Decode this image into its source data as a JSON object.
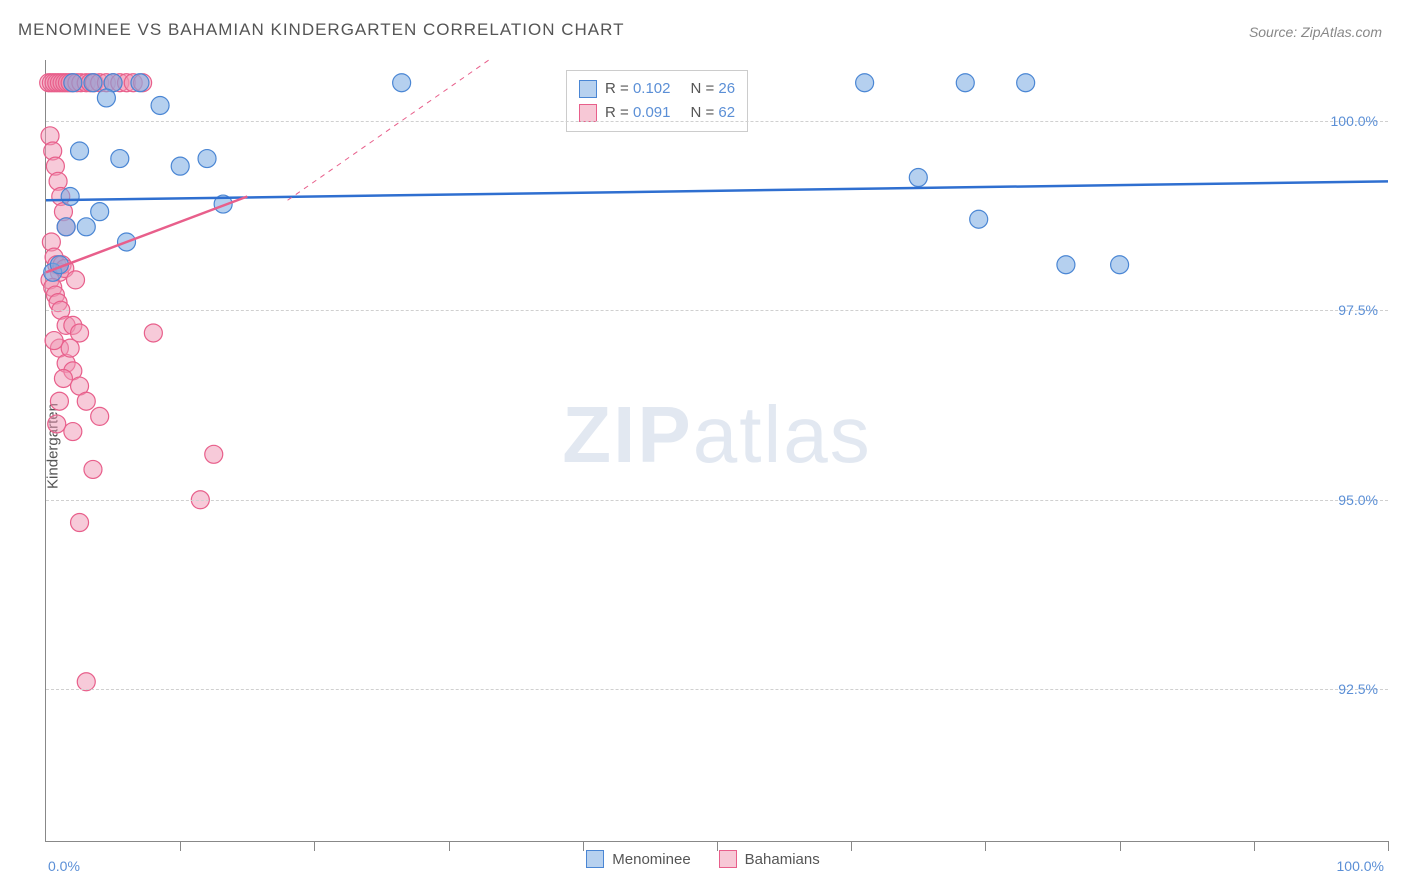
{
  "title": "MENOMINEE VS BAHAMIAN KINDERGARTEN CORRELATION CHART",
  "source": "Source: ZipAtlas.com",
  "watermark_a": "ZIP",
  "watermark_b": "atlas",
  "axis": {
    "y_title": "Kindergarten",
    "x_start": "0.0%",
    "x_end": "100.0%",
    "y_ticks": [
      {
        "label": "100.0%",
        "value": 100.0
      },
      {
        "label": "97.5%",
        "value": 97.5
      },
      {
        "label": "95.0%",
        "value": 95.0
      },
      {
        "label": "92.5%",
        "value": 92.5
      }
    ],
    "xlim": [
      0,
      100
    ],
    "ylim": [
      90.5,
      100.8
    ],
    "x_tick_positions": [
      10,
      20,
      30,
      40,
      50,
      60,
      70,
      80,
      90,
      100
    ]
  },
  "legend_top": {
    "series": [
      {
        "r_label": "R = ",
        "r_value": "0.102",
        "n_label": "N = ",
        "n_value": "26",
        "swatch_fill": "#b7d1ef",
        "swatch_border": "#4a86d4"
      },
      {
        "r_label": "R = ",
        "r_value": "0.091",
        "n_label": "N = ",
        "n_value": "62",
        "swatch_fill": "#f7c8d6",
        "swatch_border": "#e85f8b"
      }
    ]
  },
  "legend_bottom": {
    "items": [
      {
        "label": "Menominee",
        "swatch_fill": "#b7d1ef",
        "swatch_border": "#4a86d4"
      },
      {
        "label": "Bahamians",
        "swatch_fill": "#f7c8d6",
        "swatch_border": "#e85f8b"
      }
    ]
  },
  "series": {
    "menominee": {
      "type": "scatter",
      "marker_radius": 9,
      "marker_fill": "rgba(120,170,225,0.55)",
      "marker_stroke": "#4a86d4",
      "marker_stroke_width": 1.2,
      "points": [
        [
          0.5,
          98.0
        ],
        [
          1.0,
          98.1
        ],
        [
          1.5,
          98.6
        ],
        [
          1.8,
          99.0
        ],
        [
          2.0,
          100.5
        ],
        [
          2.5,
          99.6
        ],
        [
          3.0,
          98.6
        ],
        [
          4.0,
          98.8
        ],
        [
          5.0,
          100.5
        ],
        [
          5.5,
          99.5
        ],
        [
          6.0,
          98.4
        ],
        [
          7.0,
          100.5
        ],
        [
          8.5,
          100.2
        ],
        [
          10.0,
          99.4
        ],
        [
          12.0,
          99.5
        ],
        [
          13.2,
          98.9
        ],
        [
          26.5,
          100.5
        ],
        [
          61.0,
          100.5
        ],
        [
          68.5,
          100.5
        ],
        [
          73.0,
          100.5
        ],
        [
          65.0,
          99.25
        ],
        [
          69.5,
          98.7
        ],
        [
          76.0,
          98.1
        ],
        [
          80.0,
          98.1
        ],
        [
          3.5,
          100.5
        ],
        [
          4.5,
          100.3
        ]
      ],
      "trend": {
        "x1": 0,
        "y1": 98.95,
        "x2": 100,
        "y2": 99.2,
        "color": "#2f6fd0",
        "width": 2.5,
        "dash": "none"
      },
      "trend_ext": {
        "x1": 18,
        "y1": 98.95,
        "x2": 33,
        "y2": 100.8,
        "color": "#e85f8b",
        "width": 1,
        "dash": "5,5"
      }
    },
    "bahamians": {
      "type": "scatter",
      "marker_radius": 9,
      "marker_fill": "rgba(240,150,180,0.50)",
      "marker_stroke": "#e85f8b",
      "marker_stroke_width": 1.2,
      "points": [
        [
          0.2,
          100.5
        ],
        [
          0.4,
          100.5
        ],
        [
          0.6,
          100.5
        ],
        [
          0.8,
          100.5
        ],
        [
          1.0,
          100.5
        ],
        [
          1.2,
          100.5
        ],
        [
          1.4,
          100.5
        ],
        [
          1.6,
          100.5
        ],
        [
          1.8,
          100.5
        ],
        [
          2.0,
          100.5
        ],
        [
          2.3,
          100.5
        ],
        [
          2.6,
          100.5
        ],
        [
          3.0,
          100.5
        ],
        [
          3.3,
          100.5
        ],
        [
          3.6,
          100.5
        ],
        [
          4.0,
          100.5
        ],
        [
          4.5,
          100.5
        ],
        [
          5.0,
          100.5
        ],
        [
          5.5,
          100.5
        ],
        [
          6.0,
          100.5
        ],
        [
          6.5,
          100.5
        ],
        [
          7.2,
          100.5
        ],
        [
          0.3,
          99.8
        ],
        [
          0.5,
          99.6
        ],
        [
          0.7,
          99.4
        ],
        [
          0.9,
          99.2
        ],
        [
          1.1,
          99.0
        ],
        [
          1.3,
          98.8
        ],
        [
          1.5,
          98.6
        ],
        [
          0.4,
          98.4
        ],
        [
          0.6,
          98.2
        ],
        [
          0.8,
          98.1
        ],
        [
          1.0,
          98.0
        ],
        [
          1.2,
          98.1
        ],
        [
          1.4,
          98.05
        ],
        [
          0.3,
          97.9
        ],
        [
          0.5,
          97.8
        ],
        [
          0.7,
          97.7
        ],
        [
          0.9,
          97.6
        ],
        [
          1.1,
          97.5
        ],
        [
          1.5,
          97.3
        ],
        [
          2.0,
          97.3
        ],
        [
          2.5,
          97.2
        ],
        [
          1.0,
          97.0
        ],
        [
          1.5,
          96.8
        ],
        [
          2.0,
          96.7
        ],
        [
          4.0,
          96.1
        ],
        [
          8.0,
          97.2
        ],
        [
          2.5,
          96.5
        ],
        [
          3.0,
          96.3
        ],
        [
          12.5,
          95.6
        ],
        [
          11.5,
          95.0
        ],
        [
          2.5,
          94.7
        ],
        [
          2.0,
          95.9
        ],
        [
          3.5,
          95.4
        ],
        [
          1.0,
          96.3
        ],
        [
          0.8,
          96.0
        ],
        [
          3.0,
          92.6
        ],
        [
          1.3,
          96.6
        ],
        [
          0.6,
          97.1
        ],
        [
          1.8,
          97.0
        ],
        [
          2.2,
          97.9
        ]
      ],
      "trend": {
        "x1": 0,
        "y1": 98.0,
        "x2": 15,
        "y2": 99.0,
        "color": "#e85f8b",
        "width": 2.5,
        "dash": "none"
      }
    }
  },
  "style": {
    "background": "#ffffff",
    "grid_color": "#d0d0d0",
    "axis_color": "#888888",
    "label_color": "#5b8fd6",
    "title_color": "#555555"
  }
}
